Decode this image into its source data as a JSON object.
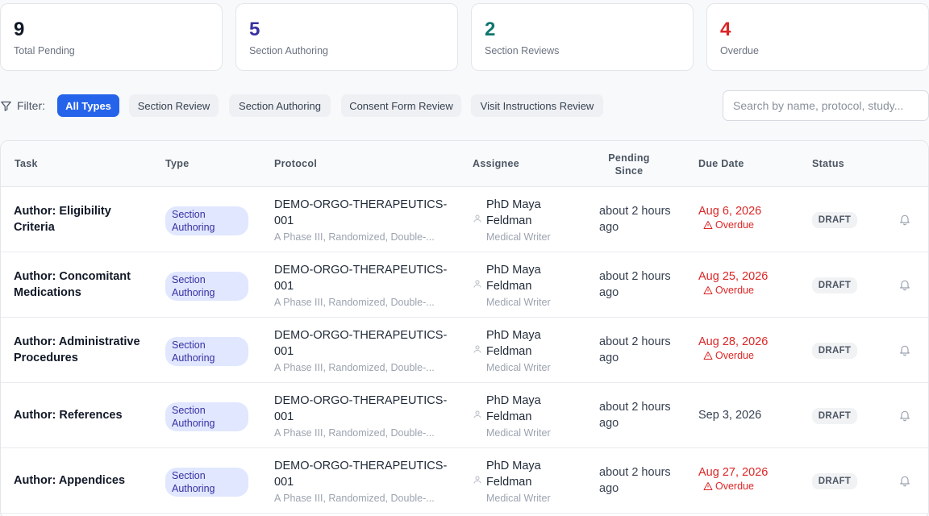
{
  "stats": [
    {
      "value": "9",
      "label": "Total Pending",
      "color": "#111827"
    },
    {
      "value": "5",
      "label": "Section Authoring",
      "color": "#3730a3"
    },
    {
      "value": "2",
      "label": "Section Reviews",
      "color": "#0f766e"
    },
    {
      "value": "4",
      "label": "Overdue",
      "color": "#dc2626"
    }
  ],
  "filter": {
    "label": "Filter:",
    "chips": [
      "All Types",
      "Section Review",
      "Section Authoring",
      "Consent Form Review",
      "Visit Instructions Review"
    ],
    "active": "All Types"
  },
  "search": {
    "placeholder": "Search by name, protocol, study..."
  },
  "colors": {
    "accent": "#2563eb",
    "overdue": "#dc2626",
    "badge_bg": "#e0e7ff",
    "badge_text": "#3730a3"
  },
  "table": {
    "columns": {
      "task": "Task",
      "type": "Type",
      "protocol": "Protocol",
      "assignee": "Assignee",
      "pending_line1": "Pending",
      "pending_line2": "Since",
      "due": "Due Date",
      "status": "Status"
    },
    "rows": [
      {
        "task": "Author: Eligibility Criteria",
        "type": "Section Authoring",
        "protocol": "DEMO-ORGO-THERAPEUTICS-001",
        "protocol_desc": "A Phase III, Randomized, Double-...",
        "assignee": "PhD Maya Feldman",
        "role": "Medical Writer",
        "pending": "about 2 hours ago",
        "due": "Aug 6, 2026",
        "overdue": "Overdue",
        "status": "DRAFT"
      },
      {
        "task": "Author: Concomitant Medications",
        "type": "Section Authoring",
        "protocol": "DEMO-ORGO-THERAPEUTICS-001",
        "protocol_desc": "A Phase III, Randomized, Double-...",
        "assignee": "PhD Maya Feldman",
        "role": "Medical Writer",
        "pending": "about 2 hours ago",
        "due": "Aug 25, 2026",
        "overdue": "Overdue",
        "status": "DRAFT"
      },
      {
        "task": "Author: Administrative Procedures",
        "type": "Section Authoring",
        "protocol": "DEMO-ORGO-THERAPEUTICS-001",
        "protocol_desc": "A Phase III, Randomized, Double-...",
        "assignee": "PhD Maya Feldman",
        "role": "Medical Writer",
        "pending": "about 2 hours ago",
        "due": "Aug 28, 2026",
        "overdue": "Overdue",
        "status": "DRAFT"
      },
      {
        "task": "Author: References",
        "type": "Section Authoring",
        "protocol": "DEMO-ORGO-THERAPEUTICS-001",
        "protocol_desc": "A Phase III, Randomized, Double-...",
        "assignee": "PhD Maya Feldman",
        "role": "Medical Writer",
        "pending": "about 2 hours ago",
        "due": "Sep 3, 2026",
        "overdue": "",
        "status": "DRAFT"
      },
      {
        "task": "Author: Appendices",
        "type": "Section Authoring",
        "protocol": "DEMO-ORGO-THERAPEUTICS-001",
        "protocol_desc": "A Phase III, Randomized, Double-...",
        "assignee": "PhD Maya Feldman",
        "role": "Medical Writer",
        "pending": "about 2 hours ago",
        "due": "Aug 27, 2026",
        "overdue": "Overdue",
        "status": "DRAFT"
      }
    ]
  }
}
